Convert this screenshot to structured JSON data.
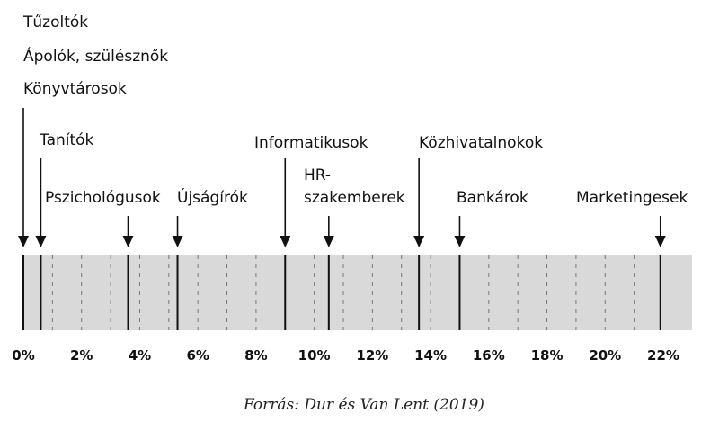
{
  "chart_data": {
    "type": "strip",
    "axis": {
      "min": 0,
      "max": 22,
      "ticks": [
        {
          "value": 0,
          "label": "0%"
        },
        {
          "value": 2,
          "label": "2%"
        },
        {
          "value": 4,
          "label": "4%"
        },
        {
          "value": 6,
          "label": "6%"
        },
        {
          "value": 8,
          "label": "8%"
        },
        {
          "value": 10,
          "label": "10%"
        },
        {
          "value": 12,
          "label": "12%"
        },
        {
          "value": 14,
          "label": "14%"
        },
        {
          "value": 16,
          "label": "16%"
        },
        {
          "value": 18,
          "label": "18%"
        },
        {
          "value": 20,
          "label": "20%"
        },
        {
          "value": 22,
          "label": "22%"
        }
      ]
    },
    "points": [
      {
        "value": 0.0,
        "labels": [
          "Tűzoltók",
          "Ápolók, szülésznők",
          "Könyvtárosok"
        ]
      },
      {
        "value": 0.6,
        "labels": [
          "Tanítók"
        ]
      },
      {
        "value": 3.6,
        "labels": [
          "Pszichológusok"
        ]
      },
      {
        "value": 5.3,
        "labels": [
          "Újságírók"
        ]
      },
      {
        "value": 9.0,
        "labels": [
          "Informatikusok"
        ]
      },
      {
        "value": 10.5,
        "labels": [
          "HR-",
          "szakemberek"
        ]
      },
      {
        "value": 13.6,
        "labels": [
          "Közhivatalnokok"
        ]
      },
      {
        "value": 15.0,
        "labels": [
          "Bankárok"
        ]
      },
      {
        "value": 21.9,
        "labels": [
          "Marketingesek"
        ]
      }
    ]
  },
  "source": "Forrás: Dur és Van Lent (2019)",
  "colors": {
    "band": "#d9d9d9",
    "line": "#111111"
  }
}
